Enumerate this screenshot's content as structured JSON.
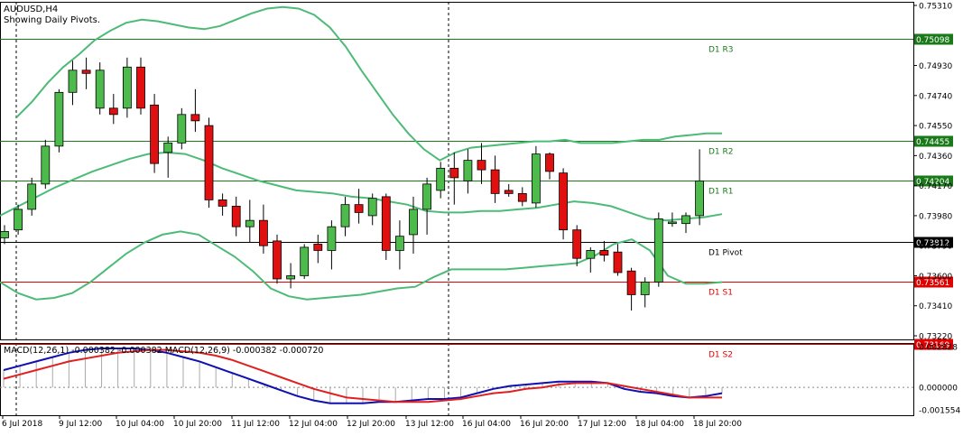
{
  "main_panel": {
    "symbol_label": "AUDUSD,H4",
    "indicator_label": "Showing Daily Pivots."
  },
  "macd_panel": {
    "label": "MACD(12,26,1) -0.000382 -0.000382 MACD(12,26,9) -0.000382 -0.000720"
  },
  "price_axis": {
    "ticks": [
      "0.75310",
      "0.74930",
      "0.74740",
      "0.74550",
      "0.74360",
      "0.74170",
      "0.73980",
      "0.73790",
      "0.73600",
      "0.73410",
      "0.73220"
    ]
  },
  "macd_axis": {
    "ticks": [
      "0.002828",
      "0.000000",
      "-0.001554"
    ]
  },
  "time_axis": {
    "labels": [
      "6 Jul 2018",
      "9 Jul 12:00",
      "10 Jul 04:00",
      "10 Jul 20:00",
      "11 Jul 12:00",
      "12 Jul 04:00",
      "12 Jul 20:00",
      "13 Jul 12:00",
      "16 Jul 04:00",
      "16 Jul 20:00",
      "17 Jul 12:00",
      "18 Jul 04:00",
      "18 Jul 20:00"
    ]
  },
  "pivot_levels": [
    {
      "name": "D1 R3",
      "price": "0.75098",
      "value": 0.75098,
      "color": "#1a7a1a"
    },
    {
      "name": "D1 R2",
      "price": "0.74455",
      "value": 0.74455,
      "color": "#1a7a1a"
    },
    {
      "name": "D1 R1",
      "price": "0.74204",
      "value": 0.74204,
      "color": "#1a7a1a"
    },
    {
      "name": "D1 Pivot",
      "price": "0.73812",
      "value": 0.73812,
      "color": "#000000"
    },
    {
      "name": "D1 S1",
      "price": "0.73561",
      "value": 0.73561,
      "color": "#e00000"
    },
    {
      "name": "D1 S2",
      "price": "0.73169",
      "value": 0.73169,
      "color": "#e00000"
    }
  ],
  "colors": {
    "bull_candle": "#4cbb4c",
    "bear_candle": "#e01010",
    "bollinger": "#4dbb77",
    "macd_line": "#1010b0",
    "signal_line": "#e02020",
    "grid_separator": "#000000"
  },
  "chart_data": {
    "type": "candlestick",
    "price_range": [
      0.7322,
      0.7531
    ],
    "macd_range": [
      -0.001554,
      0.002828
    ],
    "candles": [
      {
        "o": 0.7384,
        "h": 0.7392,
        "l": 0.738,
        "c": 0.7388
      },
      {
        "o": 0.7389,
        "h": 0.7405,
        "l": 0.7386,
        "c": 0.7402
      },
      {
        "o": 0.7402,
        "h": 0.7422,
        "l": 0.7398,
        "c": 0.7418
      },
      {
        "o": 0.7418,
        "h": 0.7446,
        "l": 0.7415,
        "c": 0.7442
      },
      {
        "o": 0.7442,
        "h": 0.7478,
        "l": 0.7438,
        "c": 0.7476
      },
      {
        "o": 0.7476,
        "h": 0.7496,
        "l": 0.7468,
        "c": 0.749
      },
      {
        "o": 0.749,
        "h": 0.7498,
        "l": 0.7478,
        "c": 0.7488
      },
      {
        "o": 0.7466,
        "h": 0.7495,
        "l": 0.7462,
        "c": 0.749
      },
      {
        "o": 0.7466,
        "h": 0.7475,
        "l": 0.7456,
        "c": 0.7462
      },
      {
        "o": 0.7466,
        "h": 0.7498,
        "l": 0.746,
        "c": 0.7492
      },
      {
        "o": 0.7492,
        "h": 0.7498,
        "l": 0.7462,
        "c": 0.7466
      },
      {
        "o": 0.7468,
        "h": 0.7475,
        "l": 0.7425,
        "c": 0.7431
      },
      {
        "o": 0.7438,
        "h": 0.7448,
        "l": 0.7422,
        "c": 0.7444
      },
      {
        "o": 0.7444,
        "h": 0.7466,
        "l": 0.744,
        "c": 0.7462
      },
      {
        "o": 0.7462,
        "h": 0.7478,
        "l": 0.7451,
        "c": 0.7458
      },
      {
        "o": 0.7455,
        "h": 0.746,
        "l": 0.7403,
        "c": 0.7408
      },
      {
        "o": 0.7408,
        "h": 0.7412,
        "l": 0.7398,
        "c": 0.7404
      },
      {
        "o": 0.7404,
        "h": 0.741,
        "l": 0.7385,
        "c": 0.7391
      },
      {
        "o": 0.7391,
        "h": 0.7408,
        "l": 0.7381,
        "c": 0.7395
      },
      {
        "o": 0.7395,
        "h": 0.7405,
        "l": 0.7374,
        "c": 0.7379
      },
      {
        "o": 0.7382,
        "h": 0.7386,
        "l": 0.7355,
        "c": 0.7358
      },
      {
        "o": 0.7358,
        "h": 0.7368,
        "l": 0.7352,
        "c": 0.736
      },
      {
        "o": 0.736,
        "h": 0.738,
        "l": 0.7358,
        "c": 0.7378
      },
      {
        "o": 0.738,
        "h": 0.7386,
        "l": 0.7368,
        "c": 0.7376
      },
      {
        "o": 0.7376,
        "h": 0.7395,
        "l": 0.7364,
        "c": 0.7391
      },
      {
        "o": 0.7391,
        "h": 0.741,
        "l": 0.7385,
        "c": 0.7405
      },
      {
        "o": 0.7405,
        "h": 0.7415,
        "l": 0.7393,
        "c": 0.74
      },
      {
        "o": 0.7398,
        "h": 0.7412,
        "l": 0.7392,
        "c": 0.7409
      },
      {
        "o": 0.741,
        "h": 0.7412,
        "l": 0.737,
        "c": 0.7376
      },
      {
        "o": 0.7376,
        "h": 0.7395,
        "l": 0.7364,
        "c": 0.7385
      },
      {
        "o": 0.7386,
        "h": 0.741,
        "l": 0.7374,
        "c": 0.7402
      },
      {
        "o": 0.7402,
        "h": 0.7422,
        "l": 0.7386,
        "c": 0.7418
      },
      {
        "o": 0.7414,
        "h": 0.7432,
        "l": 0.7409,
        "c": 0.7428
      },
      {
        "o": 0.7428,
        "h": 0.7438,
        "l": 0.7405,
        "c": 0.7422
      },
      {
        "o": 0.742,
        "h": 0.744,
        "l": 0.7412,
        "c": 0.7433
      },
      {
        "o": 0.7433,
        "h": 0.7444,
        "l": 0.7418,
        "c": 0.7427
      },
      {
        "o": 0.7427,
        "h": 0.7436,
        "l": 0.7406,
        "c": 0.7412
      },
      {
        "o": 0.7414,
        "h": 0.7418,
        "l": 0.741,
        "c": 0.7412
      },
      {
        "o": 0.7412,
        "h": 0.7416,
        "l": 0.7404,
        "c": 0.7407
      },
      {
        "o": 0.7406,
        "h": 0.7442,
        "l": 0.7403,
        "c": 0.7437
      },
      {
        "o": 0.7437,
        "h": 0.7438,
        "l": 0.7421,
        "c": 0.7426
      },
      {
        "o": 0.7425,
        "h": 0.7428,
        "l": 0.7383,
        "c": 0.7389
      },
      {
        "o": 0.7389,
        "h": 0.7392,
        "l": 0.7366,
        "c": 0.7371
      },
      {
        "o": 0.7371,
        "h": 0.7378,
        "l": 0.7362,
        "c": 0.7376
      },
      {
        "o": 0.7376,
        "h": 0.7382,
        "l": 0.7369,
        "c": 0.7373
      },
      {
        "o": 0.7375,
        "h": 0.738,
        "l": 0.736,
        "c": 0.7362
      },
      {
        "o": 0.7363,
        "h": 0.7365,
        "l": 0.7338,
        "c": 0.7348
      },
      {
        "o": 0.7348,
        "h": 0.7359,
        "l": 0.734,
        "c": 0.7356
      },
      {
        "o": 0.7356,
        "h": 0.74,
        "l": 0.7353,
        "c": 0.7396
      },
      {
        "o": 0.7393,
        "h": 0.74,
        "l": 0.7391,
        "c": 0.7394
      },
      {
        "o": 0.7393,
        "h": 0.74,
        "l": 0.7387,
        "c": 0.7398
      },
      {
        "o": 0.7398,
        "h": 0.744,
        "l": 0.7392,
        "c": 0.742
      }
    ],
    "bollinger_upper": [
      0.746,
      0.747,
      0.7482,
      0.7492,
      0.75,
      0.7509,
      0.7515,
      0.752,
      0.7522,
      0.7521,
      0.7519,
      0.7517,
      0.7516,
      0.7518,
      0.7522,
      0.7526,
      0.7529,
      0.753,
      0.7529,
      0.7525,
      0.7517,
      0.7505,
      0.749,
      0.7476,
      0.7462,
      0.745,
      0.744,
      0.7433,
      0.7438,
      0.7441,
      0.7442,
      0.7443,
      0.7444,
      0.7445,
      0.7445,
      0.7446,
      0.7444,
      0.7444,
      0.7444,
      0.7445,
      0.7446,
      0.7446,
      0.7448,
      0.7449,
      0.745,
      0.745
    ],
    "bollinger_mid": [
      0.7398,
      0.7404,
      0.741,
      0.7416,
      0.7421,
      0.7426,
      0.743,
      0.7434,
      0.7437,
      0.7438,
      0.7437,
      0.7433,
      0.7428,
      0.7424,
      0.742,
      0.7417,
      0.7414,
      0.7413,
      0.7412,
      0.741,
      0.7409,
      0.7407,
      0.7405,
      0.7401,
      0.74,
      0.74,
      0.7401,
      0.7401,
      0.7402,
      0.7403,
      0.7405,
      0.7407,
      0.7406,
      0.7404,
      0.74,
      0.7396,
      0.7395,
      0.7396,
      0.7397,
      0.7399
    ],
    "bollinger_lower": [
      0.7356,
      0.7349,
      0.7345,
      0.7346,
      0.7349,
      0.7356,
      0.7365,
      0.7374,
      0.7381,
      0.7386,
      0.7388,
      0.7386,
      0.7379,
      0.7372,
      0.7363,
      0.7352,
      0.7347,
      0.7345,
      0.7346,
      0.7347,
      0.7348,
      0.735,
      0.7352,
      0.7353,
      0.7359,
      0.7364,
      0.7364,
      0.7364,
      0.7364,
      0.7365,
      0.7366,
      0.7367,
      0.7368,
      0.7373,
      0.738,
      0.7383,
      0.7376,
      0.736,
      0.7355,
      0.7355,
      0.7356
    ],
    "macd_main": [
      0.0012,
      0.0015,
      0.0018,
      0.0021,
      0.0024,
      0.0026,
      0.0027,
      0.0027,
      0.0027,
      0.0026,
      0.0024,
      0.0021,
      0.0018,
      0.0014,
      0.001,
      0.0006,
      0.0002,
      -0.0002,
      -0.0006,
      -0.0009,
      -0.0011,
      -0.0011,
      -0.0011,
      -0.001,
      -0.001,
      -0.0009,
      -0.0008,
      -0.0008,
      -0.0007,
      -0.0004,
      -0.0001,
      0.0001,
      0.0002,
      0.0003,
      0.0004,
      0.0004,
      0.0004,
      0.0003,
      -0.0001,
      -0.0003,
      -0.0004,
      -0.0006,
      -0.0007,
      -0.0006,
      -0.0004
    ],
    "macd_signal": [
      0.0006,
      0.0009,
      0.0012,
      0.0015,
      0.0018,
      0.002,
      0.0022,
      0.0024,
      0.0025,
      0.0026,
      0.0026,
      0.0025,
      0.0024,
      0.0022,
      0.0019,
      0.0015,
      0.0011,
      0.0007,
      0.0003,
      -0.0001,
      -0.0004,
      -0.0007,
      -0.0008,
      -0.0009,
      -0.001,
      -0.001,
      -0.001,
      -0.0009,
      -0.0008,
      -0.0006,
      -0.0004,
      -0.0003,
      -0.0001,
      0.0,
      0.0002,
      0.0003,
      0.0003,
      0.0003,
      0.0001,
      -0.0001,
      -0.0003,
      -0.0005,
      -0.0007,
      -0.0007,
      -0.0007
    ]
  }
}
